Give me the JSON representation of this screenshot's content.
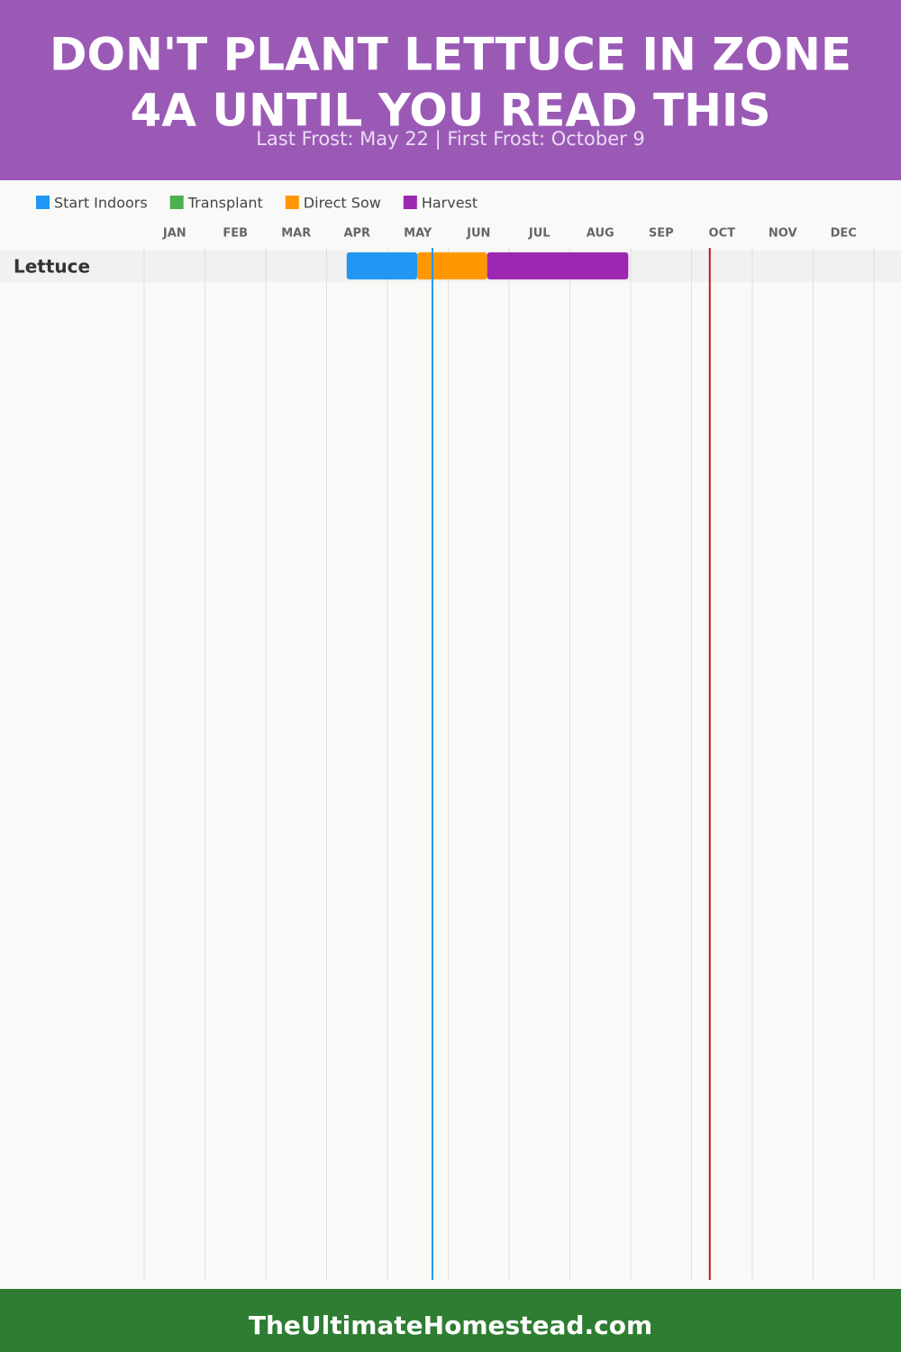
{
  "chart_data": {
    "type": "gantt",
    "title_lines": [
      "DON'T PLANT LETTUCE IN ZONE",
      "4A UNTIL YOU READ THIS"
    ],
    "subtitle": "Last Frost: May 22 | First Frost: October 9",
    "series": [
      {
        "name": "Start Indoors",
        "color": "#2196f3"
      },
      {
        "name": "Transplant",
        "color": "#4caf50"
      },
      {
        "name": "Direct Sow",
        "color": "#ff9800"
      },
      {
        "name": "Harvest",
        "color": "#9c27b0"
      }
    ],
    "categories": [
      "JAN",
      "FEB",
      "MAR",
      "APR",
      "MAY",
      "JUN",
      "JUL",
      "AUG",
      "SEP",
      "OCT",
      "NOV",
      "DEC"
    ],
    "xlim": [
      0,
      12
    ],
    "rows": [
      {
        "label": "Lettuce",
        "segments": [
          {
            "series": 0,
            "start": 3.33,
            "end": 4.49
          },
          {
            "series": 2,
            "start": 4.49,
            "end": 5.64
          },
          {
            "series": 3,
            "start": 5.64,
            "end": 7.96
          }
        ]
      }
    ],
    "frost_lines": [
      {
        "value": 4.74,
        "color": "#2196f3"
      },
      {
        "value": 9.3,
        "color": "#b71c1c"
      }
    ],
    "footer": "TheUltimateHomestead.com"
  }
}
